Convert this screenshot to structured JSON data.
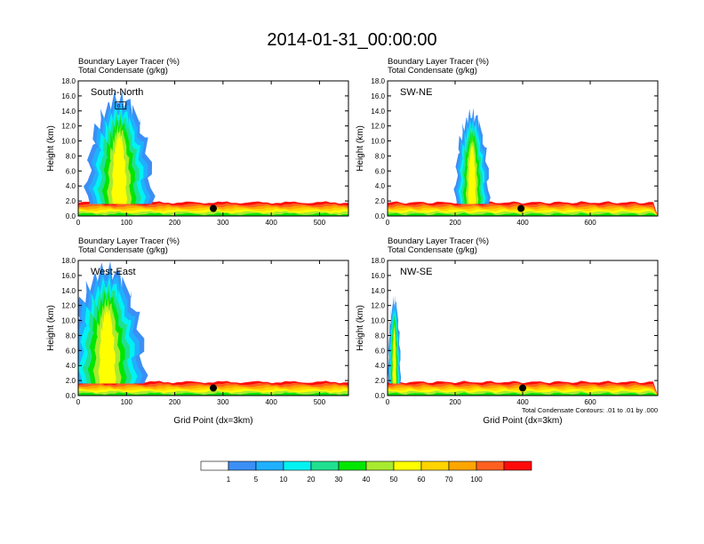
{
  "title": "2014-01-31_00:00:00",
  "panel_title_1": "Boundary Layer Tracer   (%)",
  "panel_title_2": "Total Condensate   (g/kg)",
  "ylabel": "Height (km)",
  "xlabel": "Grid Point (dx=3km)",
  "contour_note": "Total Condensate Contours: .01 to .01 by .000",
  "colorbar": {
    "colors": [
      "#ffffff",
      "#3b8ff5",
      "#20b0ff",
      "#00f2f2",
      "#20e090",
      "#00e600",
      "#a8ea30",
      "#ffff00",
      "#ffd400",
      "#ffa500",
      "#ff6020",
      "#ff0a0a"
    ],
    "labels": [
      "1",
      "5",
      "10",
      "20",
      "30",
      "40",
      "50",
      "60",
      "70",
      "100"
    ]
  },
  "chart_data": [
    {
      "type": "contour",
      "section": "South-North",
      "x_ticks": [
        0,
        100,
        200,
        300,
        400,
        500
      ],
      "xlim": [
        0,
        560
      ],
      "y_ticks": [
        "0.0",
        "2.0",
        "4.0",
        "6.0",
        "8.0",
        "10.0",
        "12.0",
        "14.0",
        "16.0",
        "18.0"
      ],
      "ylim": [
        0,
        18
      ],
      "marker": {
        "x": 280,
        "y": 1.0
      },
      "box_label": "0.1",
      "tracer_regions": [
        {
          "kind": "boundary_layer",
          "x": [
            0,
            560
          ],
          "top_km": 1.8
        },
        {
          "kind": "plume",
          "x": [
            0,
            150
          ],
          "top_km": 16.8,
          "peak_x": 85
        }
      ]
    },
    {
      "type": "contour",
      "section": "SW-NE",
      "x_ticks": [
        0,
        200,
        400,
        600
      ],
      "xlim": [
        0,
        800
      ],
      "y_ticks": [
        "0.0",
        "2.0",
        "4.0",
        "6.0",
        "8.0",
        "10.0",
        "12.0",
        "14.0",
        "16.0",
        "18.0"
      ],
      "ylim": [
        0,
        18
      ],
      "marker": {
        "x": 395,
        "y": 1.0
      },
      "tracer_regions": [
        {
          "kind": "boundary_layer",
          "x": [
            0,
            800
          ],
          "top_km": 1.8
        },
        {
          "kind": "plume",
          "x": [
            200,
            310
          ],
          "top_km": 14.5,
          "peak_x": 250
        }
      ]
    },
    {
      "type": "contour",
      "section": "West-East",
      "x_ticks": [
        0,
        100,
        200,
        300,
        400,
        500
      ],
      "xlim": [
        0,
        560
      ],
      "y_ticks": [
        "0.0",
        "2.0",
        "4.0",
        "6.0",
        "8.0",
        "10.0",
        "12.0",
        "14.0",
        "16.0",
        "18.0"
      ],
      "ylim": [
        0,
        18
      ],
      "marker": {
        "x": 280,
        "y": 1.0
      },
      "tracer_regions": [
        {
          "kind": "boundary_layer",
          "x": [
            0,
            560
          ],
          "top_km": 1.8
        },
        {
          "kind": "plume",
          "x": [
            0,
            170
          ],
          "top_km": 18.0,
          "peak_x": 60
        }
      ]
    },
    {
      "type": "contour",
      "section": "NW-SE",
      "x_ticks": [
        0,
        200,
        400,
        600
      ],
      "xlim": [
        0,
        800
      ],
      "y_ticks": [
        "0.0",
        "2.0",
        "4.0",
        "6.0",
        "8.0",
        "10.0",
        "12.0",
        "14.0",
        "16.0",
        "18.0"
      ],
      "ylim": [
        0,
        18
      ],
      "marker": {
        "x": 400,
        "y": 1.0
      },
      "tracer_regions": [
        {
          "kind": "boundary_layer",
          "x": [
            0,
            800
          ],
          "top_km": 1.8
        },
        {
          "kind": "plume",
          "x": [
            0,
            40
          ],
          "top_km": 13.5,
          "peak_x": 20
        }
      ]
    }
  ]
}
